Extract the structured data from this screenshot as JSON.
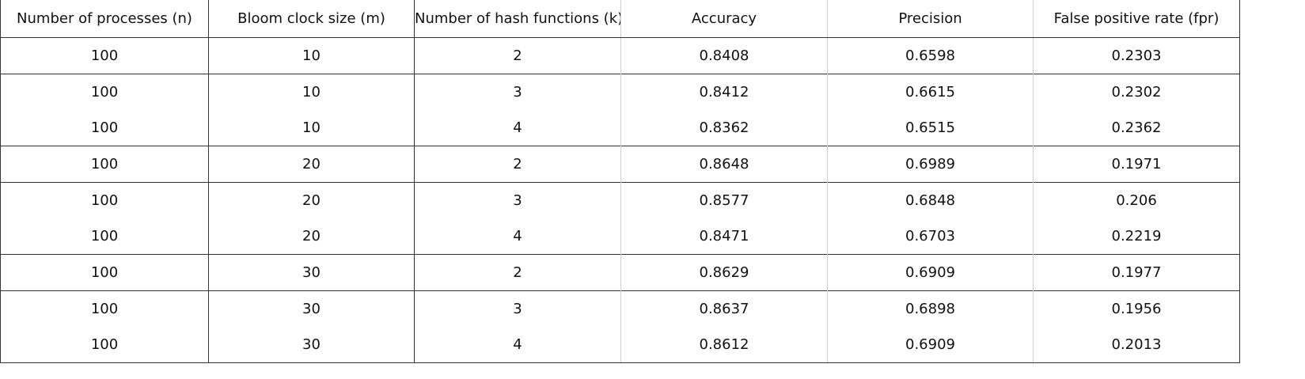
{
  "table": {
    "headers": [
      "Number of processes (n)",
      "Bloom clock size (m)",
      "Number of hash functions (k)",
      "Accuracy",
      "Precision",
      "False positive rate (fpr)"
    ],
    "rows": [
      [
        "100",
        "10",
        "2",
        "0.8408",
        "0.6598",
        "0.2303"
      ],
      [
        "100",
        "10",
        "3",
        "0.8412",
        "0.6615",
        "0.2302"
      ],
      [
        "100",
        "10",
        "4",
        "0.8362",
        "0.6515",
        "0.2362"
      ],
      [
        "100",
        "20",
        "2",
        "0.8648",
        "0.6989",
        "0.1971"
      ],
      [
        "100",
        "20",
        "3",
        "0.8577",
        "0.6848",
        "0.206"
      ],
      [
        "100",
        "20",
        "4",
        "0.8471",
        "0.6703",
        "0.2219"
      ],
      [
        "100",
        "30",
        "2",
        "0.8629",
        "0.6909",
        "0.1977"
      ],
      [
        "100",
        "30",
        "3",
        "0.8637",
        "0.6898",
        "0.1956"
      ],
      [
        "100",
        "30",
        "4",
        "0.8612",
        "0.6909",
        "0.2013"
      ]
    ]
  }
}
